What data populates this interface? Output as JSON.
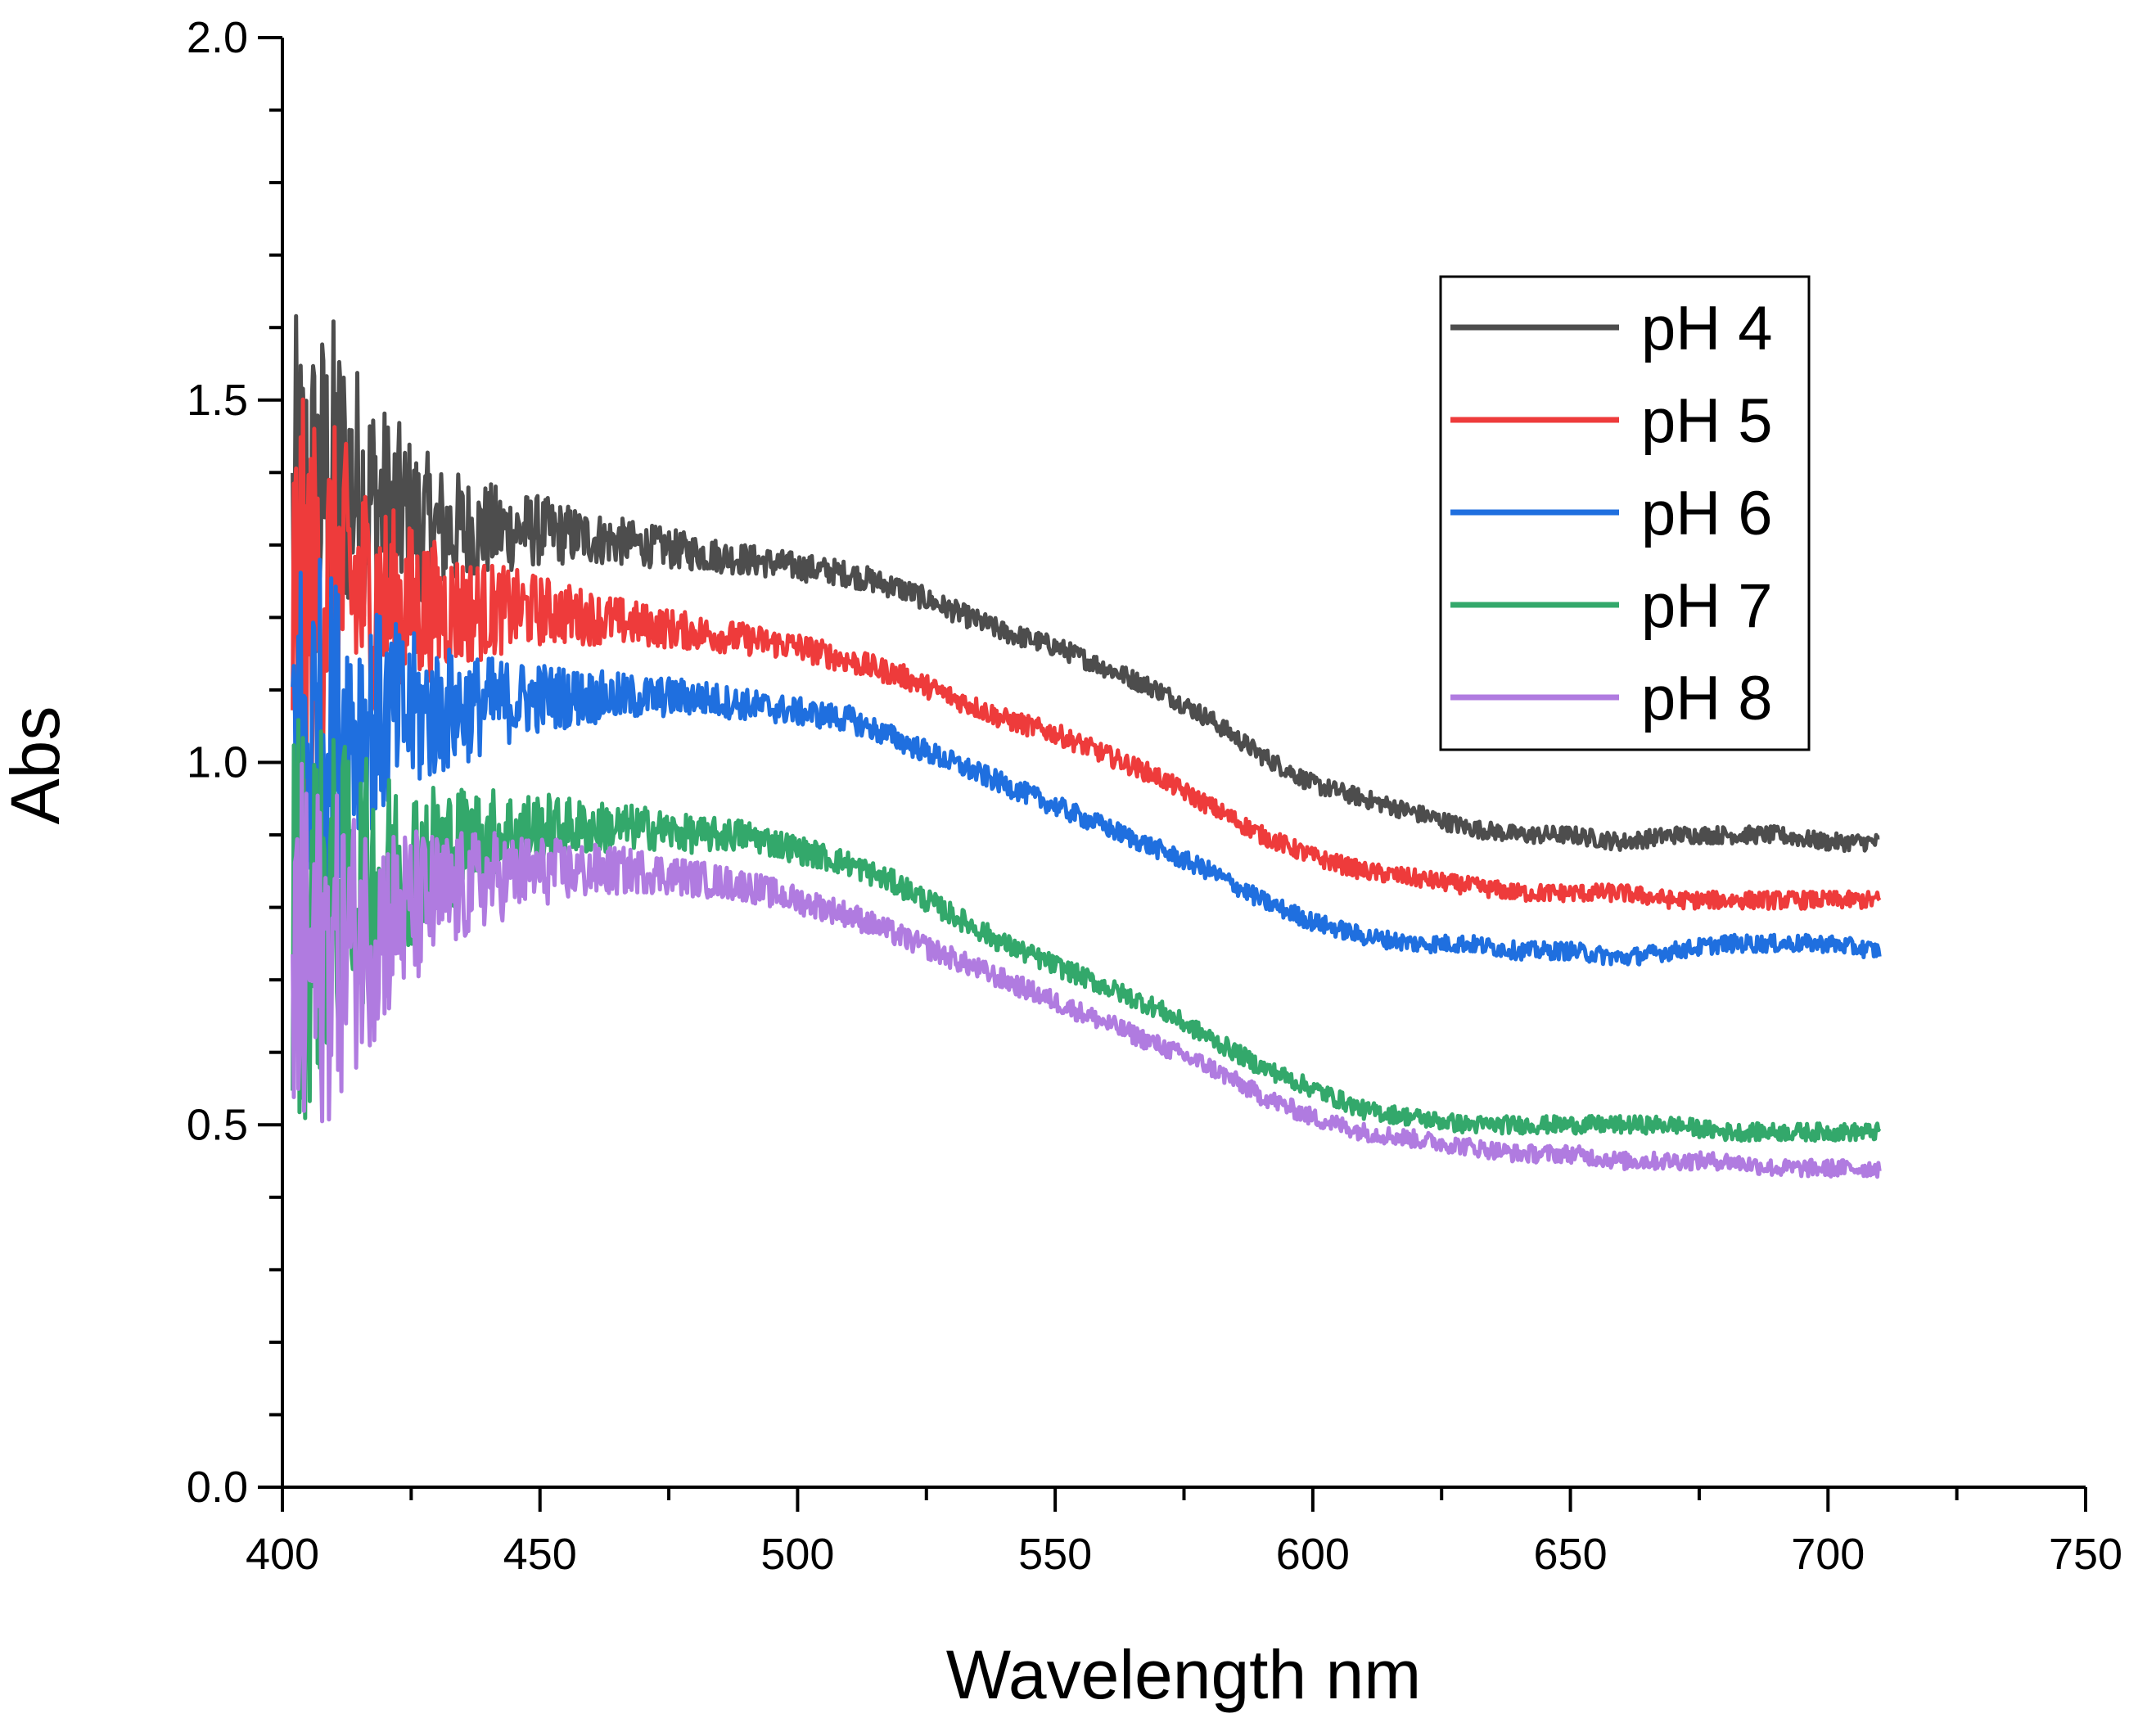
{
  "chart_data": {
    "type": "line",
    "title": "",
    "xlabel": "Wavelength  nm",
    "ylabel": "Abs",
    "xlim": [
      400,
      750
    ],
    "ylim": [
      0.0,
      2.0
    ],
    "x_ticks": [
      400,
      450,
      500,
      550,
      600,
      650,
      700,
      750
    ],
    "x_tick_labels": [
      "400",
      "450",
      "500",
      "550",
      "600",
      "650",
      "700",
      "750"
    ],
    "y_ticks": [
      0.0,
      0.5,
      1.0,
      1.5,
      2.0
    ],
    "y_tick_labels": [
      "0.0",
      "0.5",
      "1.0",
      "1.5",
      "2.0"
    ],
    "grid": false,
    "legend_position": "upper-right",
    "x": [
      402,
      410,
      420,
      430,
      440,
      450,
      460,
      470,
      480,
      490,
      500,
      510,
      520,
      530,
      540,
      550,
      560,
      570,
      580,
      590,
      600,
      610,
      620,
      630,
      640,
      650,
      660,
      670,
      680,
      690,
      700,
      710
    ],
    "series": [
      {
        "name": "pH 4",
        "color": "#4d4d4d",
        "values": [
          1.3,
          1.4,
          1.35,
          1.32,
          1.32,
          1.32,
          1.31,
          1.3,
          1.29,
          1.28,
          1.27,
          1.26,
          1.24,
          1.21,
          1.18,
          1.16,
          1.13,
          1.1,
          1.06,
          1.01,
          0.97,
          0.95,
          0.93,
          0.91,
          0.9,
          0.9,
          0.89,
          0.9,
          0.9,
          0.9,
          0.89,
          0.89
        ]
      },
      {
        "name": "pH 5",
        "color": "#ee3b3b",
        "values": [
          1.2,
          1.25,
          1.22,
          1.21,
          1.21,
          1.21,
          1.2,
          1.19,
          1.18,
          1.17,
          1.16,
          1.14,
          1.12,
          1.09,
          1.06,
          1.04,
          1.01,
          0.98,
          0.94,
          0.9,
          0.87,
          0.85,
          0.84,
          0.83,
          0.82,
          0.82,
          0.82,
          0.81,
          0.81,
          0.81,
          0.81,
          0.81
        ]
      },
      {
        "name": "pH 6",
        "color": "#1f6fdf",
        "values": [
          1.02,
          1.05,
          1.06,
          1.07,
          1.08,
          1.09,
          1.09,
          1.09,
          1.09,
          1.08,
          1.07,
          1.06,
          1.03,
          1.0,
          0.97,
          0.94,
          0.91,
          0.88,
          0.85,
          0.81,
          0.78,
          0.76,
          0.75,
          0.75,
          0.74,
          0.74,
          0.73,
          0.74,
          0.75,
          0.75,
          0.75,
          0.74
        ]
      },
      {
        "name": "pH 7",
        "color": "#33a86b",
        "values": [
          0.78,
          0.82,
          0.85,
          0.88,
          0.9,
          0.91,
          0.91,
          0.91,
          0.9,
          0.9,
          0.88,
          0.86,
          0.83,
          0.79,
          0.75,
          0.72,
          0.69,
          0.66,
          0.62,
          0.58,
          0.55,
          0.52,
          0.51,
          0.5,
          0.5,
          0.5,
          0.5,
          0.5,
          0.49,
          0.49,
          0.49,
          0.49
        ]
      },
      {
        "name": "pH 8",
        "color": "#b07be0",
        "values": [
          0.7,
          0.74,
          0.78,
          0.81,
          0.84,
          0.85,
          0.85,
          0.85,
          0.84,
          0.83,
          0.81,
          0.79,
          0.76,
          0.73,
          0.7,
          0.67,
          0.64,
          0.61,
          0.58,
          0.54,
          0.51,
          0.49,
          0.48,
          0.47,
          0.46,
          0.46,
          0.45,
          0.45,
          0.45,
          0.44,
          0.44,
          0.44
        ]
      }
    ]
  }
}
